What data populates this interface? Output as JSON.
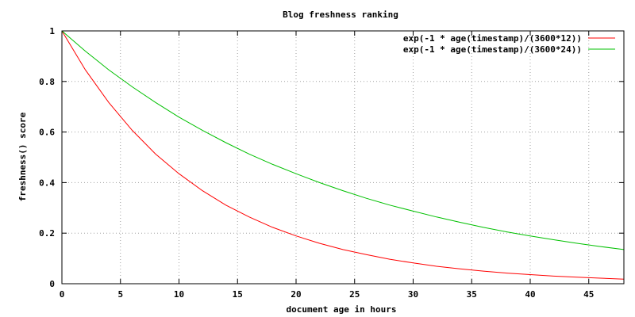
{
  "chart_data": {
    "type": "line",
    "title": "Blog freshness ranking",
    "xlabel": "document age in hours",
    "ylabel": "freshness() score",
    "xlim": [
      0,
      48
    ],
    "ylim": [
      0,
      1
    ],
    "xticks": [
      0,
      5,
      10,
      15,
      20,
      25,
      30,
      35,
      40,
      45
    ],
    "xtick_labels": [
      "0",
      "5",
      "10",
      "15",
      "20",
      "25",
      "30",
      "35",
      "40",
      "45"
    ],
    "yticks": [
      0,
      0.2,
      0.4,
      0.6,
      0.8,
      1
    ],
    "ytick_labels": [
      "0",
      "0.2",
      "0.4",
      "0.6",
      "0.8",
      "1"
    ],
    "grid": true,
    "legend_position": "top-right",
    "series": [
      {
        "name": "exp(-1 * age(timestamp)/(3600*12))",
        "color": "#ff0000",
        "x": [
          0,
          2,
          4,
          6,
          8,
          10,
          12,
          14,
          16,
          18,
          20,
          22,
          24,
          26,
          28,
          30,
          32,
          34,
          36,
          38,
          40,
          42,
          44,
          46,
          48
        ],
        "y": [
          1,
          0.846,
          0.717,
          0.607,
          0.513,
          0.435,
          0.368,
          0.311,
          0.264,
          0.223,
          0.189,
          0.16,
          0.135,
          0.115,
          0.097,
          0.082,
          0.069,
          0.059,
          0.05,
          0.042,
          0.036,
          0.03,
          0.026,
          0.022,
          0.018
        ]
      },
      {
        "name": "exp(-1 * age(timestamp)/(3600*24))",
        "color": "#00c000",
        "x": [
          0,
          2,
          4,
          6,
          8,
          10,
          12,
          14,
          16,
          18,
          20,
          22,
          24,
          26,
          28,
          30,
          32,
          34,
          36,
          38,
          40,
          42,
          44,
          46,
          48
        ],
        "y": [
          1,
          0.92,
          0.846,
          0.779,
          0.717,
          0.659,
          0.607,
          0.558,
          0.513,
          0.472,
          0.435,
          0.4,
          0.368,
          0.338,
          0.311,
          0.287,
          0.264,
          0.243,
          0.223,
          0.205,
          0.189,
          0.174,
          0.16,
          0.147,
          0.135
        ]
      }
    ]
  }
}
